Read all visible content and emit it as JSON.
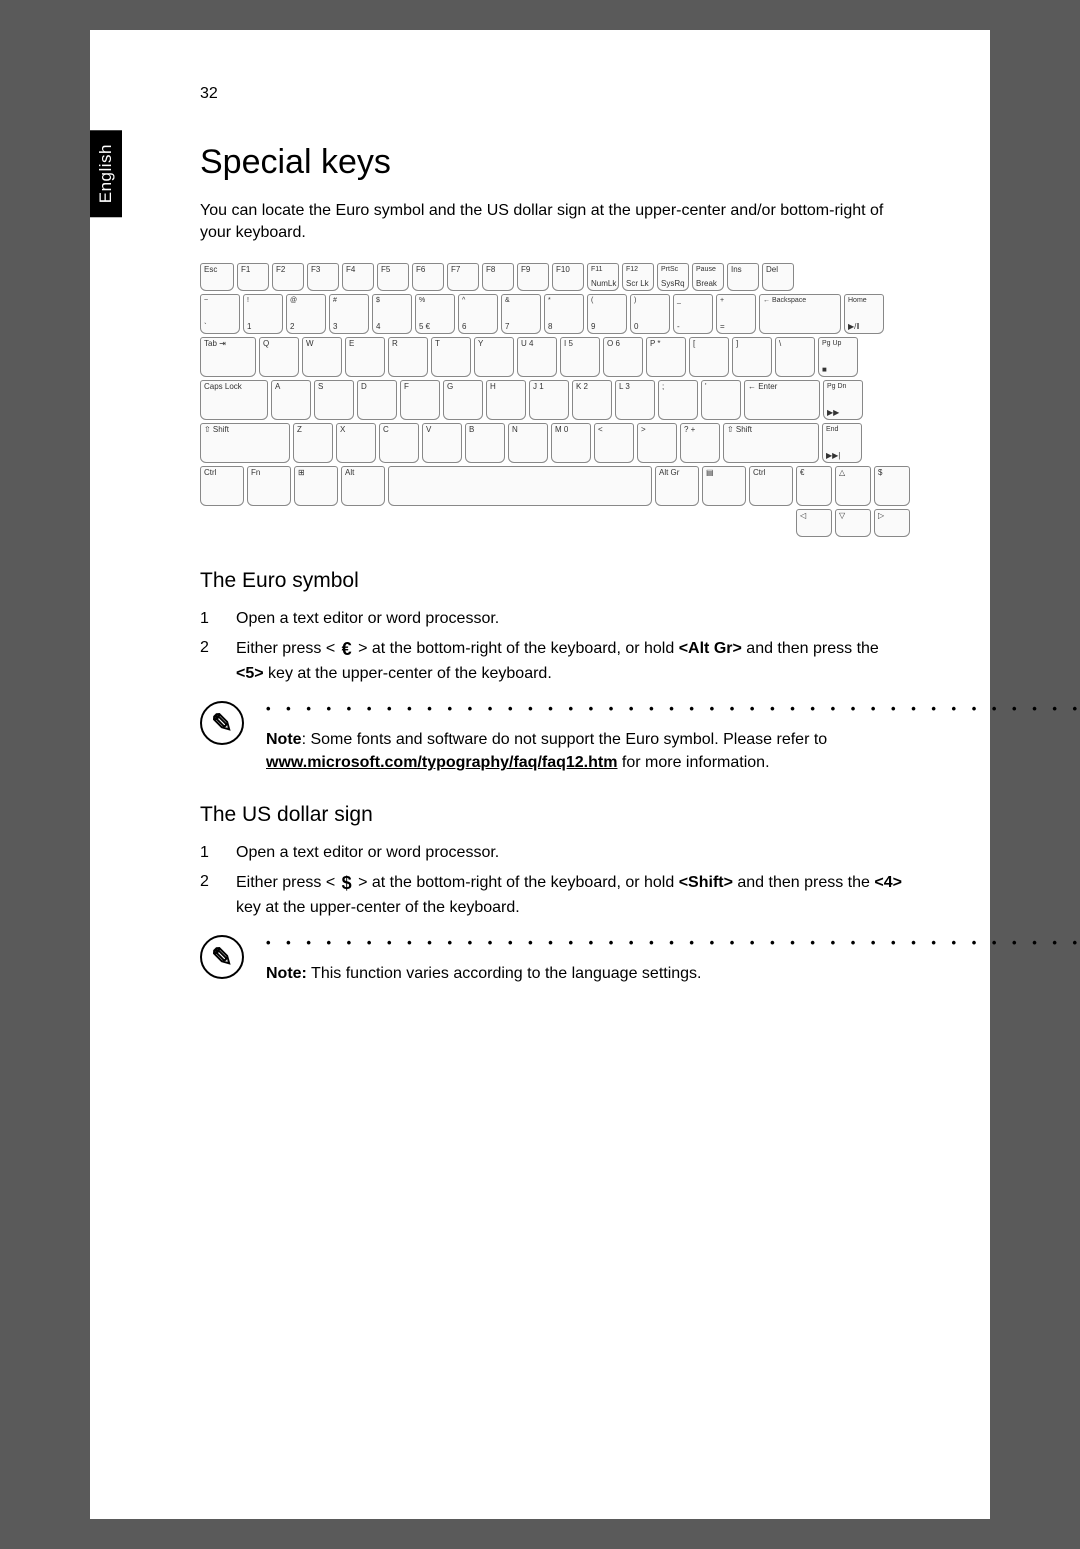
{
  "page": {
    "number": "32",
    "side_tab": "English"
  },
  "heading": "Special keys",
  "intro": "You can locate the Euro symbol and the US dollar sign at the upper-center and/or bottom-right of your keyboard.",
  "keyboard": {
    "row0": [
      "Esc",
      "F1",
      "F2",
      "F3",
      "F4",
      "F5",
      "F6",
      "F7",
      "F8",
      "F9",
      "F10",
      "F11\nNumLk",
      "F12\nScr Lk",
      "PrtSc\nSysRq",
      "Pause\nBreak",
      "Ins",
      "Del"
    ],
    "row1_top": [
      "~",
      "!",
      "@",
      "#",
      "$",
      "%",
      "^",
      "&",
      "*",
      "(",
      ")",
      "_",
      "+",
      "← Backspace",
      "Home"
    ],
    "row1_bottom": [
      "`",
      "1",
      "2",
      "3",
      "4",
      "5 €",
      "6",
      "7",
      "8",
      "9",
      "0",
      "-",
      "=",
      "",
      "▶/‖"
    ],
    "row2": [
      "Tab ⇥",
      "Q",
      "W",
      "E",
      "R",
      "T",
      "Y",
      "U 4",
      "I 5",
      "O 6",
      "P *",
      "[",
      "]",
      "\\",
      "Pg Up\n■"
    ],
    "row3": [
      "Caps Lock",
      "A",
      "S",
      "D",
      "F",
      "G",
      "H",
      "J 1",
      "K 2",
      "L 3",
      ";",
      "'",
      "← Enter",
      "Pg Dn\n▶▶"
    ],
    "row4": [
      "⇧ Shift",
      "Z",
      "X",
      "C",
      "V",
      "B",
      "N",
      "M 0",
      "<",
      ">",
      "? +",
      "⇧ Shift",
      "End\n▶▶|"
    ],
    "row5_left": [
      "Ctrl",
      "Fn",
      "⊞",
      "Alt"
    ],
    "row5_right": [
      "Alt Gr",
      "▤",
      "Ctrl",
      "€",
      "△",
      "$"
    ],
    "row6_arrows": [
      "◁",
      "▽",
      "▷"
    ]
  },
  "euro": {
    "heading": "The Euro symbol",
    "step1": "Open a text editor or word processor.",
    "step2a": "Either press < ",
    "step2_sym": "€",
    "step2b": " > at the bottom-right of the keyboard, or hold ",
    "step2_key": "<Alt Gr>",
    "step2c": " and then press the ",
    "step2_key2": "<5>",
    "step2d": " key at the upper-center of the keyboard.",
    "note_label": "Note",
    "note_a": ": Some fonts and software do not support the Euro symbol. Please refer to ",
    "note_link": "www.microsoft.com/typography/faq/faq12.htm",
    "note_b": " for more information."
  },
  "dollar": {
    "heading": "The US dollar sign",
    "step1": "Open a text editor or word processor.",
    "step2a": "Either press < ",
    "step2_sym": "$",
    "step2b": " > at the bottom-right of the keyboard, or hold ",
    "step2_key": "<Shift>",
    "step2c": " and then press the ",
    "step2_key2": "<4>",
    "step2d": " key at the upper-center of the keyboard.",
    "note_label": "Note:",
    "note_text": " This function varies according to the language settings."
  },
  "style": {
    "page_bg": "#ffffff",
    "outer_bg": "#5a5a5a",
    "text_color": "#000000",
    "h1_fontsize": 34,
    "h2_fontsize": 21,
    "body_fontsize": 16,
    "key_border": "#888888",
    "key_bg": "#fafafa",
    "icon_border_width": 2.5
  }
}
